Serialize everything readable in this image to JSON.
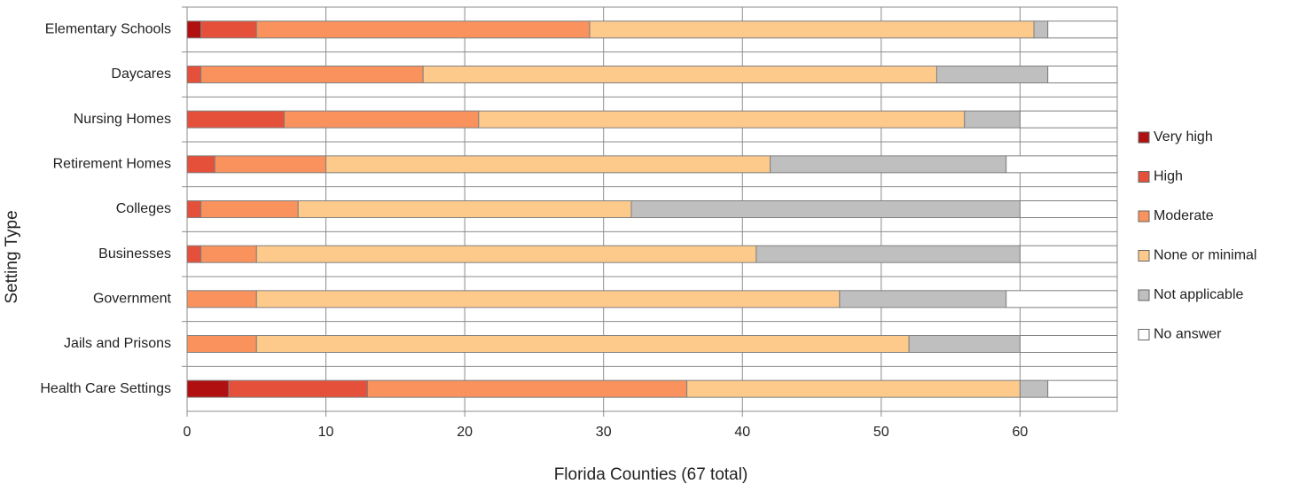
{
  "chart_data": {
    "type": "stacked-bar-horizontal",
    "x_label": "Florida Counties (67 total)",
    "y_label": "Setting Type",
    "categories": [
      "Elementary Schools",
      "Daycares",
      "Nursing Homes",
      "Retirement Homes",
      "Colleges",
      "Businesses",
      "Government",
      "Jails and Prisons",
      "Health Care Settings"
    ],
    "series": [
      {
        "name": "Very high",
        "color": "#b01010",
        "values": [
          1,
          0,
          0,
          0,
          0,
          0,
          0,
          0,
          3
        ]
      },
      {
        "name": "High",
        "color": "#e5503a",
        "values": [
          4,
          1,
          7,
          2,
          1,
          1,
          0,
          0,
          10
        ]
      },
      {
        "name": "Moderate",
        "color": "#f9925d",
        "values": [
          24,
          16,
          14,
          8,
          7,
          4,
          5,
          5,
          23
        ]
      },
      {
        "name": "None or minimal",
        "color": "#fdca8b",
        "values": [
          32,
          37,
          35,
          32,
          24,
          36,
          42,
          47,
          24
        ]
      },
      {
        "name": "Not applicable",
        "color": "#bfbfbf",
        "values": [
          1,
          8,
          4,
          17,
          28,
          19,
          12,
          8,
          2
        ]
      },
      {
        "name": "No answer",
        "color": "#ffffff",
        "values": [
          5,
          5,
          7,
          8,
          7,
          7,
          8,
          7,
          5
        ]
      }
    ],
    "xlim": [
      0,
      67
    ],
    "xticks": [
      0,
      10,
      20,
      30,
      40,
      50,
      60
    ],
    "grid": true,
    "legend": "right"
  }
}
